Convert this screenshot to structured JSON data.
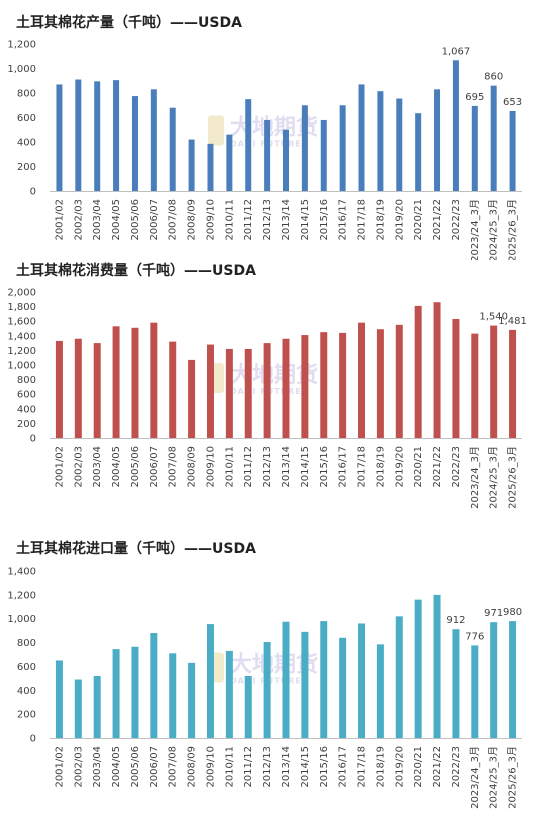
{
  "watermark": {
    "cn": "大地期货",
    "en": "DADI FUTURES"
  },
  "chart_data": [
    {
      "type": "bar",
      "title": "土耳其棉花产量（千吨）——USDA",
      "color": "#4a7ebb",
      "categories": [
        "2001/02",
        "2002/03",
        "2003/04",
        "2004/05",
        "2005/06",
        "2006/07",
        "2007/08",
        "2008/09",
        "2009/10",
        "2010/11",
        "2011/12",
        "2012/13",
        "2013/14",
        "2014/15",
        "2015/16",
        "2016/17",
        "2017/18",
        "2018/19",
        "2019/20",
        "2020/21",
        "2021/22",
        "2022/23",
        "2023/24_3月",
        "2024/25_3月",
        "2025/26_3月"
      ],
      "values": [
        870,
        910,
        895,
        905,
        775,
        830,
        680,
        420,
        385,
        460,
        750,
        580,
        500,
        700,
        580,
        700,
        870,
        815,
        755,
        635,
        830,
        1067,
        695,
        860,
        653
      ],
      "ylim": [
        0,
        1200
      ],
      "yticks": [
        "0",
        "200",
        "400",
        "600",
        "800",
        "1,000",
        "1,200"
      ],
      "ytick_values": [
        0,
        200,
        400,
        600,
        800,
        1000,
        1200
      ],
      "data_labels": [
        {
          "index": 21,
          "text": "1,067"
        },
        {
          "index": 22,
          "text": "695"
        },
        {
          "index": 23,
          "text": "860"
        },
        {
          "index": 24,
          "text": "653"
        }
      ]
    },
    {
      "type": "bar",
      "title": "土耳其棉花消费量（千吨）——USDA",
      "color": "#c0504d",
      "categories": [
        "2001/02",
        "2002/03",
        "2003/04",
        "2004/05",
        "2005/06",
        "2006/07",
        "2007/08",
        "2008/09",
        "2009/10",
        "2010/11",
        "2011/12",
        "2012/13",
        "2013/14",
        "2014/15",
        "2015/16",
        "2016/17",
        "2017/18",
        "2018/19",
        "2019/20",
        "2020/21",
        "2021/22",
        "2022/23",
        "2023/24_3月",
        "2024/25_3月",
        "2025/26_3月"
      ],
      "values": [
        1330,
        1360,
        1300,
        1530,
        1510,
        1580,
        1320,
        1070,
        1280,
        1220,
        1220,
        1300,
        1360,
        1410,
        1450,
        1440,
        1580,
        1490,
        1550,
        1810,
        1860,
        1630,
        1430,
        1540,
        1481
      ],
      "ylim": [
        0,
        2000
      ],
      "yticks": [
        "0",
        "200",
        "400",
        "600",
        "800",
        "1,000",
        "1,200",
        "1,400",
        "1,600",
        "1,800",
        "2,000"
      ],
      "ytick_values": [
        0,
        200,
        400,
        600,
        800,
        1000,
        1200,
        1400,
        1600,
        1800,
        2000
      ],
      "data_labels": [
        {
          "index": 23,
          "text": "1,540"
        },
        {
          "index": 24,
          "text": "1,481"
        }
      ]
    },
    {
      "type": "bar",
      "title": "土耳其棉花进口量（千吨）——USDA",
      "color": "#4bacc6",
      "categories": [
        "2001/02",
        "2002/03",
        "2003/04",
        "2004/05",
        "2005/06",
        "2006/07",
        "2007/08",
        "2008/09",
        "2009/10",
        "2010/11",
        "2011/12",
        "2012/13",
        "2013/14",
        "2014/15",
        "2015/16",
        "2016/17",
        "2017/18",
        "2018/19",
        "2019/20",
        "2020/21",
        "2021/22",
        "2022/23",
        "2023/24_3月",
        "2024/25_3月",
        "2025/26_3月"
      ],
      "values": [
        650,
        490,
        520,
        745,
        765,
        880,
        710,
        630,
        955,
        730,
        520,
        805,
        975,
        890,
        980,
        840,
        960,
        785,
        1020,
        1160,
        1200,
        912,
        776,
        971,
        980
      ],
      "ylim": [
        0,
        1400
      ],
      "yticks": [
        "0",
        "200",
        "400",
        "600",
        "800",
        "1,000",
        "1,200",
        "1,400"
      ],
      "ytick_values": [
        0,
        200,
        400,
        600,
        800,
        1000,
        1200,
        1400
      ],
      "data_labels": [
        {
          "index": 21,
          "text": "912"
        },
        {
          "index": 22,
          "text": "776"
        },
        {
          "index": 23,
          "text": "971"
        },
        {
          "index": 24,
          "text": "980"
        }
      ]
    }
  ]
}
